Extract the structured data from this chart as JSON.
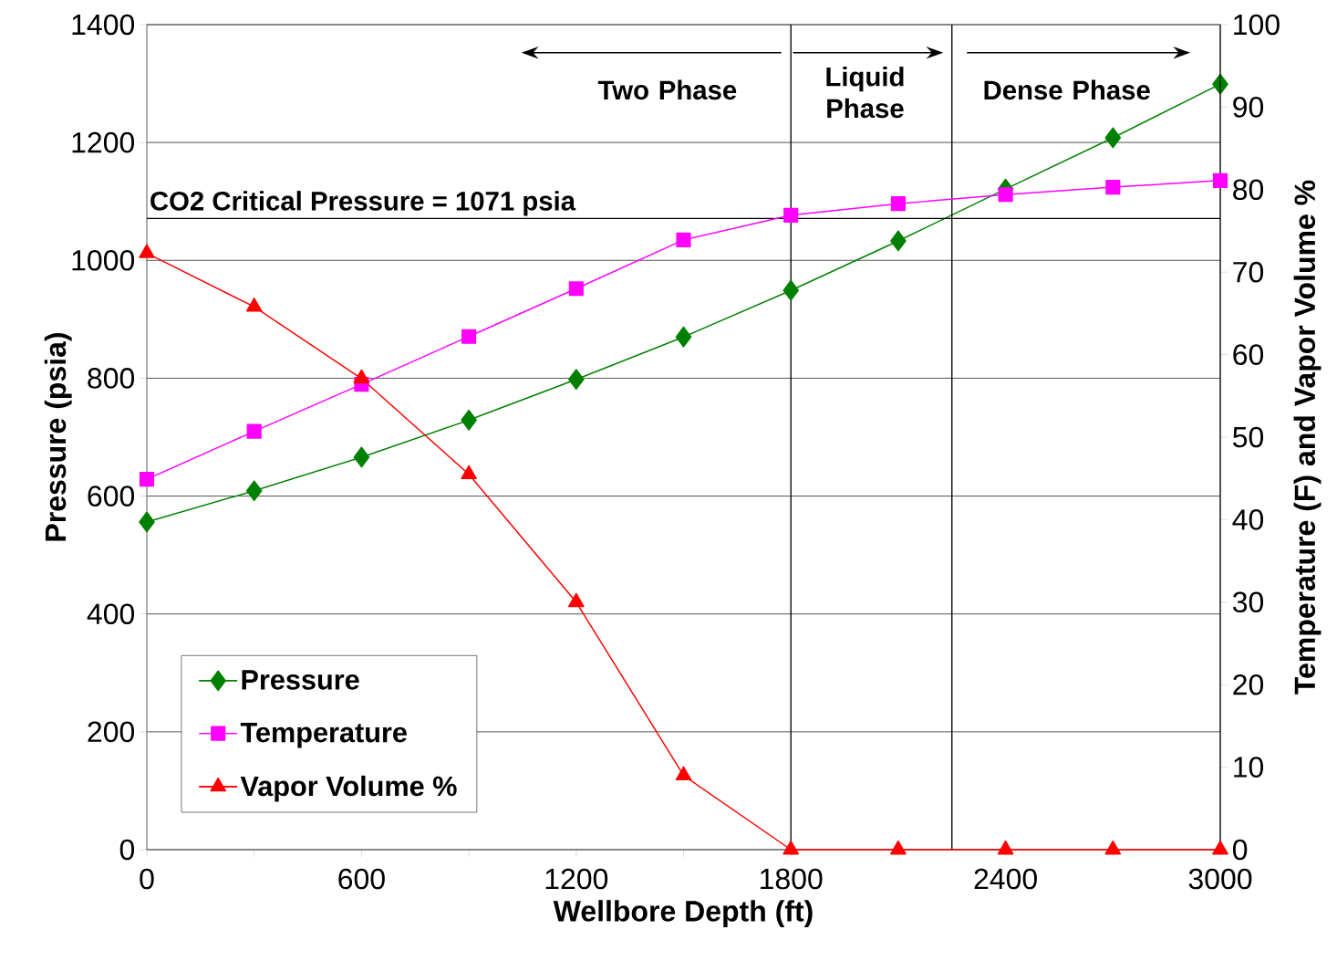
{
  "chart_data": {
    "type": "line",
    "xlabel": "Wellbore Depth (ft)",
    "ylabel": "Pressure (psia)",
    "y2label": "Temperature (F) and Vapor Volume %",
    "x": [
      0,
      300,
      600,
      900,
      1200,
      1500,
      1800,
      2100,
      2400,
      2700,
      3000
    ],
    "series": [
      {
        "name": "Pressure",
        "color": "#008000",
        "marker": "diamond",
        "values": [
          556,
          609,
          666,
          729,
          798,
          870,
          949,
          1033,
          1121,
          1208,
          1299
        ]
      },
      {
        "name": "Temperature",
        "color": "#ff00ff",
        "marker": "square",
        "axis": "y2",
        "values": [
          44.9,
          50.7,
          56.4,
          62.2,
          68.0,
          73.9,
          76.9,
          78.3,
          79.4,
          80.3,
          81.1
        ]
      },
      {
        "name": "Vapor Volume %",
        "color": "#ff0000",
        "marker": "triangle",
        "axis": "y2",
        "values": [
          72.3,
          65.8,
          57.1,
          45.5,
          30.0,
          9.0,
          0,
          0,
          0,
          0,
          0
        ]
      }
    ],
    "xlim": [
      0,
      3000
    ],
    "xticks": [
      0,
      {
        "value": 300,
        "label": null
      },
      600,
      {
        "value": 900,
        "label": null
      },
      1200,
      {
        "value": 1500,
        "label": null
      },
      1800,
      {
        "value": 2100,
        "label": null
      },
      2400,
      {
        "value": 2700,
        "label": null
      },
      3000
    ],
    "ylim": [
      0,
      1400
    ],
    "yticks": [
      0,
      200,
      400,
      600,
      800,
      1000,
      1200,
      1400
    ],
    "y2lim": [
      0,
      100
    ],
    "y2ticks": [
      0,
      10,
      20,
      30,
      40,
      50,
      60,
      70,
      80,
      90,
      100
    ],
    "ref_lines": [
      {
        "axis": "y",
        "value": 1071,
        "label": "CO2 Critical Pressure = 1071 psia",
        "color": "#000000"
      },
      {
        "axis": "x",
        "value": 1800,
        "color": "#000000"
      },
      {
        "axis": "x",
        "value": 2250,
        "color": "#000000"
      }
    ],
    "annotations": [
      "Two Phase",
      "Liquid Phase",
      "Dense Phase"
    ],
    "grid": "y",
    "legend": "bottom left",
    "line_style": "solid"
  }
}
